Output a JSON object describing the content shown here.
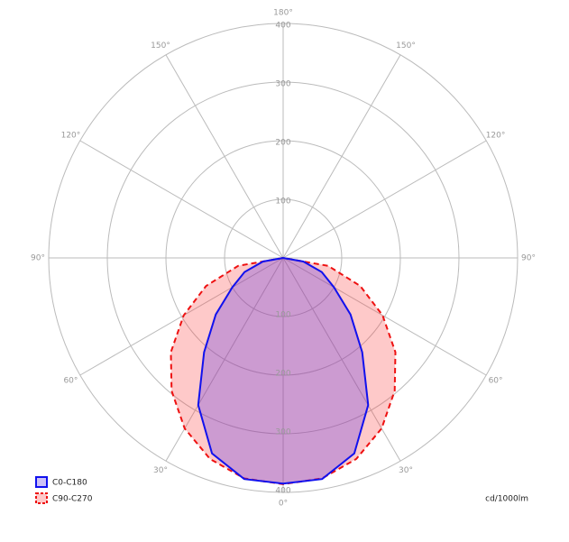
{
  "chart_data": {
    "type": "polar",
    "unit_label": "cd/1000lm",
    "x": [
      -90,
      -80,
      -70,
      -60,
      -50,
      -40,
      -30,
      -20,
      -10,
      0,
      10,
      20,
      30,
      40,
      50,
      60,
      70,
      80,
      90
    ],
    "series": [
      {
        "name": "C90-C270",
        "color": "#ee1111",
        "dashed": true,
        "values": [
          0,
          78,
          140,
          196,
          250,
          296,
          336,
          365,
          382,
          386,
          382,
          365,
          336,
          296,
          250,
          196,
          140,
          78,
          0
        ]
      },
      {
        "name": "C0-C180",
        "color": "#1111ee",
        "dashed": false,
        "values": [
          0,
          35,
          70,
          100,
          150,
          210,
          290,
          355,
          383,
          385,
          383,
          355,
          290,
          210,
          150,
          100,
          70,
          35,
          0
        ]
      }
    ],
    "rlim": [
      0,
      400
    ],
    "rticks": [
      100,
      200,
      300,
      400
    ],
    "angle_ticks": [
      {
        "value": -150,
        "label": "150°"
      },
      {
        "value": -120,
        "label": "120°"
      },
      {
        "value": -90,
        "label": "90°"
      },
      {
        "value": -60,
        "label": "60°"
      },
      {
        "value": -30,
        "label": "30°"
      },
      {
        "value": 0,
        "label": "0°"
      },
      {
        "value": 30,
        "label": "30°"
      },
      {
        "value": 60,
        "label": "60°"
      },
      {
        "value": 90,
        "label": "90°"
      },
      {
        "value": 120,
        "label": "120°"
      },
      {
        "value": 150,
        "label": "150°"
      },
      {
        "value": 180,
        "label": "180°"
      }
    ]
  }
}
